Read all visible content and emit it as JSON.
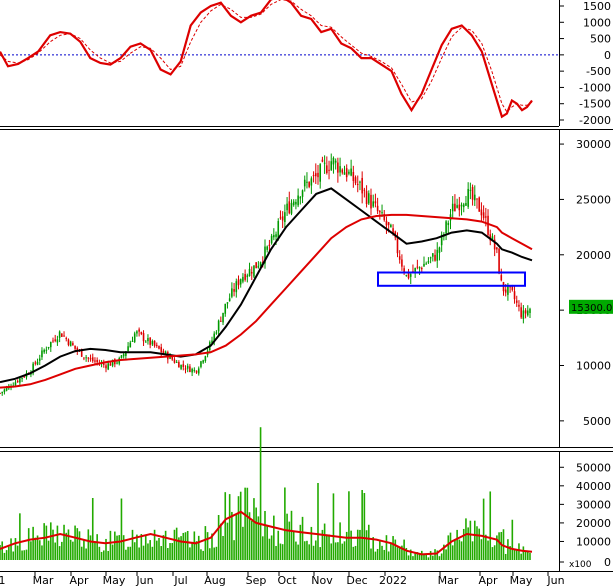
{
  "chart_data": [
    {
      "type": "line",
      "panel": "oscillator",
      "ylim": [
        -2000,
        1500
      ],
      "yticks": [
        "1500",
        "1000",
        "500",
        "0",
        "-500",
        "-1000",
        "-1500",
        "-2000"
      ],
      "ytick_values": [
        1500,
        1000,
        500,
        0,
        -500,
        -1000,
        -1500,
        -2000
      ],
      "zero_line": true,
      "x": [
        0,
        8,
        18,
        28,
        38,
        50,
        60,
        70,
        80,
        90,
        100,
        110,
        120,
        130,
        140,
        150,
        160,
        170,
        180,
        190,
        200,
        210,
        220,
        230,
        240,
        250,
        260,
        270,
        280,
        290,
        300,
        310,
        320,
        330,
        340,
        350,
        360,
        370,
        380,
        390,
        400,
        410,
        420,
        430,
        440,
        450,
        460,
        470,
        480,
        490,
        500,
        505,
        510,
        515,
        520,
        525,
        530
      ],
      "series": [
        {
          "line": "solid",
          "color": "#dd0000",
          "values": [
            100,
            -350,
            -280,
            -100,
            100,
            600,
            700,
            650,
            400,
            -100,
            -250,
            -300,
            -100,
            250,
            350,
            150,
            -450,
            -600,
            -200,
            900,
            1300,
            1500,
            1600,
            1200,
            1000,
            1200,
            1300,
            1700,
            1800,
            1600,
            1200,
            1100,
            700,
            800,
            350,
            200,
            -100,
            -100,
            -300,
            -500,
            -1200,
            -1700,
            -1200,
            -450,
            300,
            800,
            900,
            600,
            100,
            -900,
            -1900,
            -1800,
            -1400,
            -1500,
            -1700,
            -1600,
            -1400
          ]
        },
        {
          "line": "dashed",
          "color": "#dd0000",
          "values": [
            0,
            -200,
            -250,
            -150,
            50,
            400,
            600,
            650,
            500,
            150,
            -100,
            -250,
            -200,
            50,
            250,
            200,
            -100,
            -450,
            -350,
            400,
            1000,
            1350,
            1550,
            1400,
            1150,
            1150,
            1250,
            1550,
            1700,
            1650,
            1400,
            1200,
            900,
            850,
            550,
            300,
            50,
            -50,
            -200,
            -400,
            -900,
            -1450,
            -1350,
            -800,
            -100,
            550,
            850,
            750,
            350,
            -500,
            -1500,
            -1750,
            -1600,
            -1500,
            -1550,
            -1550,
            -1450
          ]
        }
      ]
    },
    {
      "type": "line",
      "panel": "price",
      "ylim": [
        3000,
        31000
      ],
      "yticks": [
        "30000",
        "25000",
        "20000",
        "15000",
        "10000",
        "5000"
      ],
      "ytick_values": [
        30000,
        25000,
        20000,
        15000,
        10000,
        5000
      ],
      "last_price": "15300.00",
      "last_price_value": 15300,
      "x": [
        0,
        15,
        30,
        45,
        60,
        75,
        90,
        105,
        120,
        135,
        150,
        165,
        180,
        195,
        210,
        225,
        240,
        255,
        270,
        285,
        300,
        315,
        330,
        345,
        360,
        375,
        390,
        405,
        420,
        435,
        450,
        465,
        480,
        495,
        500,
        510,
        520,
        530
      ],
      "close": [
        7500,
        8500,
        9500,
        11500,
        13000,
        11500,
        10500,
        10000,
        10500,
        13000,
        12000,
        11000,
        10000,
        9500,
        12000,
        15500,
        18000,
        19000,
        21000,
        24000,
        26000,
        27000,
        28500,
        27500,
        26000,
        24000,
        22000,
        18000,
        19000,
        20000,
        24000,
        25500,
        24000,
        20000,
        17000,
        16500,
        14500,
        15300
      ],
      "series": [
        {
          "name_color": "#000000",
          "values": [
            8500,
            8800,
            9300,
            10000,
            10800,
            11300,
            11500,
            11400,
            11200,
            11200,
            11200,
            11000,
            10800,
            11000,
            11800,
            13500,
            15500,
            18000,
            20500,
            22500,
            24000,
            25500,
            26000,
            25000,
            24000,
            23000,
            22000,
            21000,
            21200,
            21500,
            22000,
            22200,
            22000,
            21000,
            20500,
            20200,
            19800,
            19500
          ]
        },
        {
          "name_color": "#dd0000",
          "values": [
            8000,
            8100,
            8300,
            8700,
            9200,
            9700,
            10000,
            10300,
            10500,
            10600,
            10700,
            10800,
            10900,
            11000,
            11200,
            11800,
            12800,
            14000,
            15500,
            17000,
            18500,
            20000,
            21500,
            22500,
            23200,
            23500,
            23600,
            23600,
            23500,
            23400,
            23300,
            23200,
            23000,
            22500,
            22000,
            21500,
            21000,
            20500
          ]
        }
      ],
      "annotation_box": {
        "y_range": [
          17200,
          18400
        ],
        "x_range": [
          378,
          525
        ],
        "color": "#0000ff"
      }
    },
    {
      "type": "bar",
      "panel": "volume",
      "ylim": [
        0,
        55000
      ],
      "yticks": [
        "50000",
        "40000",
        "30000",
        "20000",
        "10000",
        "0"
      ],
      "ytick_values": [
        50000,
        40000,
        30000,
        20000,
        10000,
        0
      ],
      "unit_label": "x100",
      "ma_values": [
        6000,
        9000,
        11000,
        12000,
        14000,
        12000,
        10000,
        9000,
        10000,
        12000,
        14000,
        12000,
        10000,
        9000,
        12000,
        22000,
        26000,
        20000,
        18000,
        16000,
        15000,
        14000,
        13000,
        12000,
        12000,
        11000,
        9000,
        5000,
        3000,
        3500,
        10000,
        14000,
        13000,
        11000,
        8000,
        6000,
        5000,
        4500
      ]
    }
  ],
  "xaxis": {
    "labels": [
      "1",
      "Mar",
      "Apr",
      "May",
      "Jun",
      "Jul",
      "Aug",
      "Sep",
      "Oct",
      "Nov",
      "Dec",
      "2022",
      "Mar",
      "Apr",
      "May",
      "Jun"
    ]
  },
  "colors": {
    "up": "#009900",
    "down": "#dd0000",
    "macd": "#dd0000",
    "ma_short": "#000000",
    "ma_long": "#dd0000",
    "volume_bar": "#22aa00",
    "zero_line": "#0000cc",
    "box": "#0000ff",
    "badge_bg": "#00aa00"
  }
}
